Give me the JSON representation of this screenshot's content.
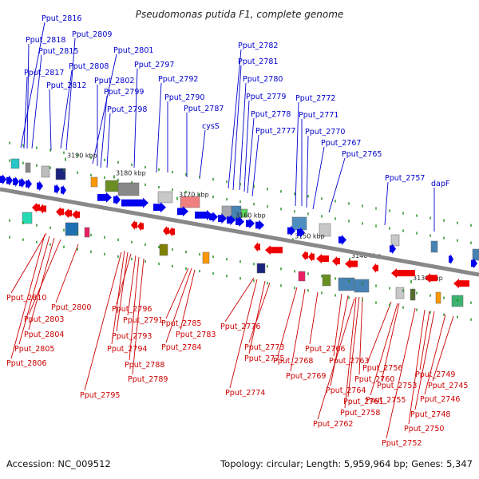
{
  "title": "Pseudomonas putida F1, complete genome",
  "footer": {
    "accession": "Accession: NC_009512",
    "topology": "Topology: circular; Length: 5,959,964 bp; Genes: 5,347"
  },
  "colors": {
    "top_label": "#0000cc",
    "bottom_label": "#cc0000",
    "forward_arrow": "#0000ee",
    "reverse_arrow": "#ee0000",
    "backbone": "#888888",
    "tick": "#1a8a1a"
  },
  "scale_ticks": [
    "3190 kbp",
    "3180 kbp",
    "3170 kbp",
    "3160 kbp",
    "3150 kbp",
    "3140 kbp",
    "3130 kbp"
  ],
  "top_labels": [
    "Pput_2816",
    "Pput_2818",
    "Pput_2809",
    "Pput_2815",
    "Pput_2817",
    "Pput_2808",
    "Pput_2812",
    "Pput_2801",
    "Pput_2802",
    "Pput_2799",
    "Pput_2798",
    "Pput_2797",
    "Pput_2792",
    "Pput_2790",
    "Pput_2787",
    "cysS",
    "Pput_2782",
    "Pput_2781",
    "Pput_2780",
    "Pput_2779",
    "Pput_2778",
    "Pput_2777",
    "Pput_2772",
    "Pput_2771",
    "Pput_2770",
    "Pput_2767",
    "Pput_2765",
    "Pput_2757",
    "dapF"
  ],
  "bottom_labels": [
    "Pput_2810",
    "Pput_2800",
    "Pput_2803",
    "Pput_2804",
    "Pput_2805",
    "Pput_2806",
    "Pput_2796",
    "Pput_2791",
    "Pput_2793",
    "Pput_2794",
    "Pput_2788",
    "Pput_2789",
    "Pput_2795",
    "Pput_2785",
    "Pput_2783",
    "Pput_2784",
    "Pput_2776",
    "Pput_2773",
    "Pput_2775",
    "Pput_2774",
    "Pput_2768",
    "Pput_2769",
    "Pput_2766",
    "Pput_2763",
    "Pput_2764",
    "Pput_2760",
    "Pput_2761",
    "Pput_2758",
    "Pput_2762",
    "Pput_2756",
    "Pput_2753",
    "Pput_2755",
    "Pput_2749",
    "Pput_2745",
    "Pput_2746",
    "Pput_2748",
    "Pput_2750",
    "Pput_2752"
  ]
}
